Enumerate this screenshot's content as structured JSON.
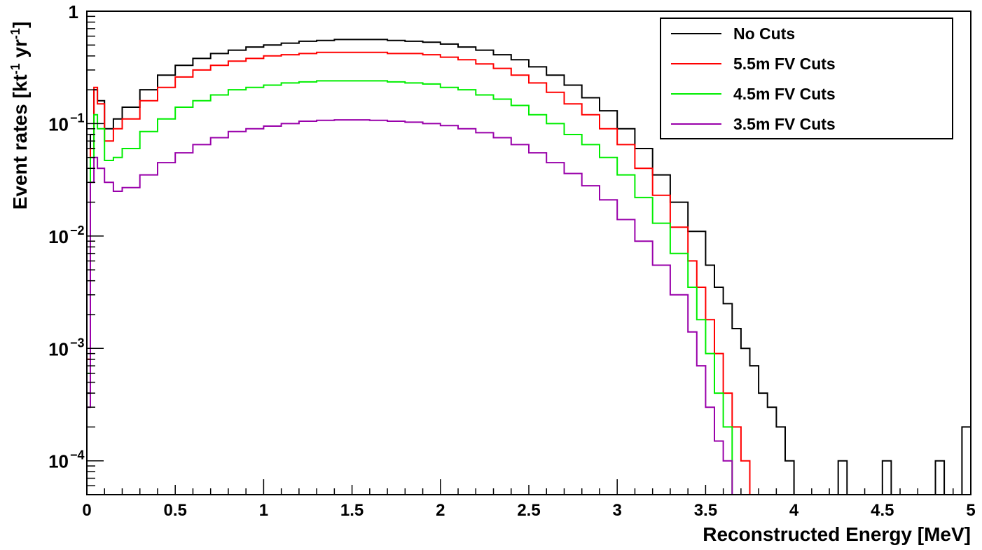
{
  "chart_data": {
    "type": "line",
    "step": true,
    "xlabel": "Reconstructed Energy [MeV]",
    "ylabel_parts": [
      "Event rates [kt",
      "-1",
      " yr",
      "-1",
      "]"
    ],
    "x_range": [
      0,
      5
    ],
    "y_range": [
      5e-05,
      1
    ],
    "y_scale": "log",
    "grid": false,
    "legend_position": "top-right",
    "x_ticks": [
      {
        "value": 0,
        "label": "0"
      },
      {
        "value": 0.5,
        "label": "0.5"
      },
      {
        "value": 1,
        "label": "1"
      },
      {
        "value": 1.5,
        "label": "1.5"
      },
      {
        "value": 2,
        "label": "2"
      },
      {
        "value": 2.5,
        "label": "2.5"
      },
      {
        "value": 3,
        "label": "3"
      },
      {
        "value": 3.5,
        "label": "3.5"
      },
      {
        "value": 4,
        "label": "4"
      },
      {
        "value": 4.5,
        "label": "4.5"
      },
      {
        "value": 5,
        "label": "5"
      }
    ],
    "y_ticks": [
      {
        "value": 1,
        "base": "1",
        "exp": ""
      },
      {
        "value": 0.1,
        "base": "10",
        "exp": "−1"
      },
      {
        "value": 0.01,
        "base": "10",
        "exp": "−2"
      },
      {
        "value": 0.001,
        "base": "10",
        "exp": "−3"
      },
      {
        "value": 0.0001,
        "base": "10",
        "exp": "−4"
      }
    ],
    "series": [
      {
        "name": "No Cuts",
        "color": "#000000",
        "points": [
          [
            0,
            0.0004
          ],
          [
            0.02,
            0.08
          ],
          [
            0.04,
            0.2
          ],
          [
            0.06,
            0.16
          ],
          [
            0.1,
            0.09
          ],
          [
            0.15,
            0.11
          ],
          [
            0.2,
            0.14
          ],
          [
            0.3,
            0.2
          ],
          [
            0.4,
            0.27
          ],
          [
            0.5,
            0.33
          ],
          [
            0.6,
            0.38
          ],
          [
            0.7,
            0.42
          ],
          [
            0.8,
            0.45
          ],
          [
            0.9,
            0.48
          ],
          [
            1.0,
            0.5
          ],
          [
            1.1,
            0.52
          ],
          [
            1.2,
            0.54
          ],
          [
            1.3,
            0.55
          ],
          [
            1.4,
            0.56
          ],
          [
            1.5,
            0.56
          ],
          [
            1.6,
            0.56
          ],
          [
            1.7,
            0.55
          ],
          [
            1.8,
            0.54
          ],
          [
            1.9,
            0.53
          ],
          [
            2.0,
            0.51
          ],
          [
            2.1,
            0.48
          ],
          [
            2.2,
            0.45
          ],
          [
            2.3,
            0.41
          ],
          [
            2.4,
            0.37
          ],
          [
            2.5,
            0.32
          ],
          [
            2.6,
            0.27
          ],
          [
            2.7,
            0.22
          ],
          [
            2.8,
            0.17
          ],
          [
            2.9,
            0.13
          ],
          [
            3.0,
            0.09
          ],
          [
            3.1,
            0.06
          ],
          [
            3.2,
            0.035
          ],
          [
            3.3,
            0.02
          ],
          [
            3.4,
            0.011
          ],
          [
            3.5,
            0.0055
          ],
          [
            3.55,
            0.0035
          ],
          [
            3.6,
            0.0025
          ],
          [
            3.65,
            0.0015
          ],
          [
            3.7,
            0.001
          ],
          [
            3.75,
            0.0007
          ],
          [
            3.8,
            0.0004
          ],
          [
            3.85,
            0.0003
          ],
          [
            3.9,
            0.0002
          ],
          [
            3.95,
            0.0001
          ],
          [
            4.0,
            5e-05
          ],
          [
            4.25,
            0.0001
          ],
          [
            4.3,
            5e-05
          ],
          [
            4.5,
            0.0001
          ],
          [
            4.55,
            5e-05
          ],
          [
            4.8,
            0.0001
          ],
          [
            4.85,
            5e-05
          ],
          [
            4.95,
            0.0002
          ],
          [
            5.0,
            0.0002
          ]
        ]
      },
      {
        "name": "5.5m FV Cuts",
        "color": "#ff0000",
        "points": [
          [
            0,
            0.0008
          ],
          [
            0.02,
            0.06
          ],
          [
            0.04,
            0.21
          ],
          [
            0.06,
            0.15
          ],
          [
            0.1,
            0.07
          ],
          [
            0.15,
            0.09
          ],
          [
            0.2,
            0.11
          ],
          [
            0.3,
            0.16
          ],
          [
            0.4,
            0.21
          ],
          [
            0.5,
            0.26
          ],
          [
            0.6,
            0.3
          ],
          [
            0.7,
            0.33
          ],
          [
            0.8,
            0.36
          ],
          [
            0.9,
            0.38
          ],
          [
            1.0,
            0.4
          ],
          [
            1.1,
            0.41
          ],
          [
            1.2,
            0.42
          ],
          [
            1.3,
            0.43
          ],
          [
            1.4,
            0.43
          ],
          [
            1.5,
            0.43
          ],
          [
            1.6,
            0.43
          ],
          [
            1.7,
            0.42
          ],
          [
            1.8,
            0.42
          ],
          [
            1.9,
            0.41
          ],
          [
            2.0,
            0.39
          ],
          [
            2.1,
            0.37
          ],
          [
            2.2,
            0.34
          ],
          [
            2.3,
            0.31
          ],
          [
            2.4,
            0.27
          ],
          [
            2.5,
            0.23
          ],
          [
            2.6,
            0.19
          ],
          [
            2.7,
            0.15
          ],
          [
            2.8,
            0.12
          ],
          [
            2.9,
            0.09
          ],
          [
            3.0,
            0.065
          ],
          [
            3.1,
            0.04
          ],
          [
            3.2,
            0.023
          ],
          [
            3.3,
            0.012
          ],
          [
            3.4,
            0.006
          ],
          [
            3.45,
            0.0035
          ],
          [
            3.5,
            0.0018
          ],
          [
            3.55,
            0.0009
          ],
          [
            3.6,
            0.0004
          ],
          [
            3.65,
            0.0002
          ],
          [
            3.7,
            0.0001
          ],
          [
            3.75,
            5e-05
          ],
          [
            3.8,
            5e-05
          ],
          [
            5.0,
            5e-05
          ]
        ]
      },
      {
        "name": "4.5m FV Cuts",
        "color": "#00ee00",
        "points": [
          [
            0,
            0.0006
          ],
          [
            0.02,
            0.05
          ],
          [
            0.04,
            0.12
          ],
          [
            0.06,
            0.09
          ],
          [
            0.1,
            0.047
          ],
          [
            0.15,
            0.05
          ],
          [
            0.2,
            0.06
          ],
          [
            0.3,
            0.085
          ],
          [
            0.4,
            0.11
          ],
          [
            0.5,
            0.14
          ],
          [
            0.6,
            0.16
          ],
          [
            0.7,
            0.18
          ],
          [
            0.8,
            0.2
          ],
          [
            0.9,
            0.21
          ],
          [
            1.0,
            0.22
          ],
          [
            1.1,
            0.23
          ],
          [
            1.2,
            0.235
          ],
          [
            1.3,
            0.24
          ],
          [
            1.4,
            0.24
          ],
          [
            1.5,
            0.24
          ],
          [
            1.6,
            0.24
          ],
          [
            1.7,
            0.235
          ],
          [
            1.8,
            0.23
          ],
          [
            1.9,
            0.225
          ],
          [
            2.0,
            0.21
          ],
          [
            2.1,
            0.2
          ],
          [
            2.2,
            0.18
          ],
          [
            2.3,
            0.165
          ],
          [
            2.4,
            0.145
          ],
          [
            2.5,
            0.12
          ],
          [
            2.6,
            0.1
          ],
          [
            2.7,
            0.08
          ],
          [
            2.8,
            0.065
          ],
          [
            2.9,
            0.05
          ],
          [
            3.0,
            0.035
          ],
          [
            3.1,
            0.022
          ],
          [
            3.2,
            0.013
          ],
          [
            3.3,
            0.007
          ],
          [
            3.4,
            0.0035
          ],
          [
            3.45,
            0.0018
          ],
          [
            3.5,
            0.0009
          ],
          [
            3.55,
            0.0004
          ],
          [
            3.6,
            0.0002
          ],
          [
            3.65,
            5e-05
          ],
          [
            5.0,
            5e-05
          ]
        ]
      },
      {
        "name": "3.5m FV Cuts",
        "color": "#9900aa",
        "points": [
          [
            0,
            0.0003
          ],
          [
            0.02,
            0.03
          ],
          [
            0.04,
            0.05
          ],
          [
            0.06,
            0.04
          ],
          [
            0.1,
            0.03
          ],
          [
            0.15,
            0.025
          ],
          [
            0.2,
            0.027
          ],
          [
            0.3,
            0.035
          ],
          [
            0.4,
            0.045
          ],
          [
            0.5,
            0.055
          ],
          [
            0.6,
            0.065
          ],
          [
            0.7,
            0.075
          ],
          [
            0.8,
            0.085
          ],
          [
            0.9,
            0.09
          ],
          [
            1.0,
            0.095
          ],
          [
            1.1,
            0.1
          ],
          [
            1.2,
            0.105
          ],
          [
            1.3,
            0.107
          ],
          [
            1.4,
            0.108
          ],
          [
            1.5,
            0.108
          ],
          [
            1.6,
            0.107
          ],
          [
            1.7,
            0.105
          ],
          [
            1.8,
            0.103
          ],
          [
            1.9,
            0.1
          ],
          [
            2.0,
            0.096
          ],
          [
            2.1,
            0.09
          ],
          [
            2.2,
            0.083
          ],
          [
            2.3,
            0.075
          ],
          [
            2.4,
            0.065
          ],
          [
            2.5,
            0.055
          ],
          [
            2.6,
            0.045
          ],
          [
            2.7,
            0.036
          ],
          [
            2.8,
            0.028
          ],
          [
            2.9,
            0.021
          ],
          [
            3.0,
            0.014
          ],
          [
            3.1,
            0.009
          ],
          [
            3.2,
            0.0055
          ],
          [
            3.3,
            0.003
          ],
          [
            3.4,
            0.0014
          ],
          [
            3.45,
            0.0007
          ],
          [
            3.5,
            0.0003
          ],
          [
            3.55,
            0.00015
          ],
          [
            3.6,
            0.0001
          ],
          [
            3.65,
            5e-05
          ],
          [
            5.0,
            5e-05
          ]
        ]
      }
    ]
  }
}
